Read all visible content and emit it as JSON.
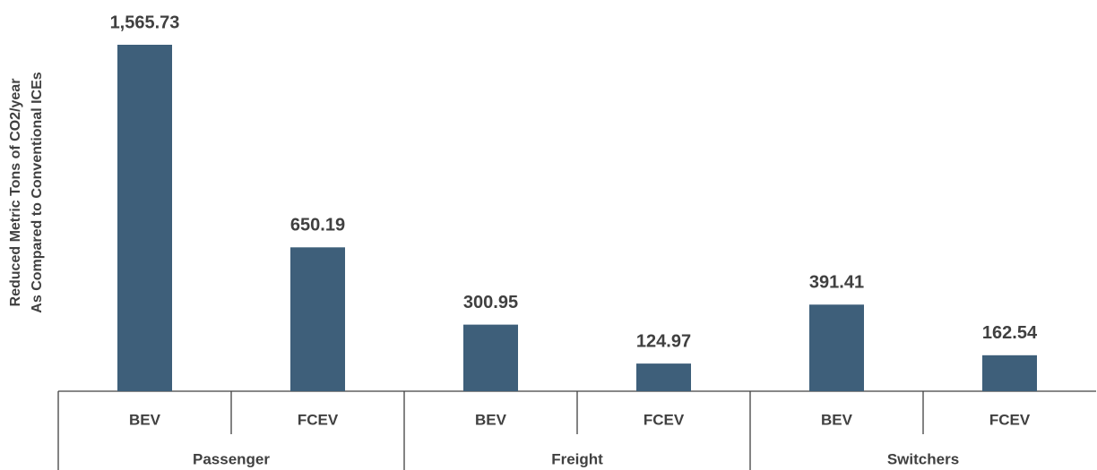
{
  "chart_data": {
    "type": "bar",
    "ylabel": [
      "Reduced Metric Tons of CO2/year",
      "As Compared to Conventional ICEs"
    ],
    "groups": [
      "Passenger",
      "Freight",
      "Switchers"
    ],
    "categories": [
      "BEV",
      "FCEV",
      "BEV",
      "FCEV",
      "BEV",
      "FCEV"
    ],
    "values": [
      1565.73,
      650.19,
      300.95,
      124.97,
      391.41,
      162.54
    ],
    "value_labels": [
      "1,565.73",
      "650.19",
      "300.95",
      "124.97",
      "391.41",
      "162.54"
    ],
    "color": "#3e5f7a"
  }
}
